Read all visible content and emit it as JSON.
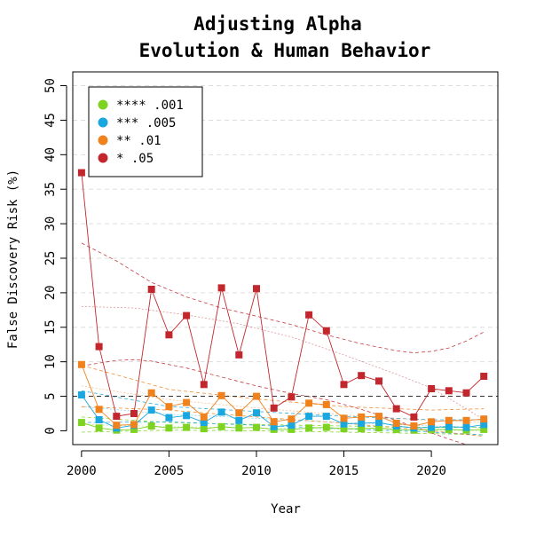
{
  "chart_data": {
    "type": "line",
    "title": "Adjusting Alpha",
    "subtitle": "Evolution & Human Behavior",
    "xlabel": "Year",
    "ylabel": "False Discovery Risk (%)",
    "xlim": [
      1999.5,
      2023.8
    ],
    "ylim": [
      -2,
      52
    ],
    "xticks": [
      2000,
      2005,
      2010,
      2015,
      2020
    ],
    "yticks": [
      0,
      5,
      10,
      15,
      20,
      25,
      30,
      35,
      40,
      45,
      50
    ],
    "reference_line": 5,
    "grid": "horizontal dashed",
    "legend_position": "top-left",
    "x": [
      2000,
      2001,
      2002,
      2003,
      2004,
      2005,
      2006,
      2007,
      2008,
      2009,
      2010,
      2011,
      2012,
      2013,
      2014,
      2015,
      2016,
      2017,
      2018,
      2019,
      2020,
      2021,
      2022,
      2023
    ],
    "series": [
      {
        "name": "**** .001",
        "color": "#7ed321",
        "values": [
          1.2,
          0.4,
          0.1,
          0.2,
          0.7,
          0.4,
          0.5,
          0.3,
          0.6,
          0.4,
          0.5,
          0.2,
          0.2,
          0.4,
          0.5,
          0.3,
          0.3,
          0.4,
          0.2,
          0.1,
          0.2,
          0.2,
          0.1,
          0.2
        ],
        "trend": [
          [
            2000,
            0.9
          ],
          [
            2005,
            0.6
          ],
          [
            2010,
            0.4
          ],
          [
            2015,
            0.25
          ],
          [
            2020,
            0.1
          ],
          [
            2023,
            0.0
          ]
        ],
        "band_upper": [
          [
            2000,
            2.0
          ],
          [
            2005,
            1.2
          ],
          [
            2010,
            0.9
          ],
          [
            2015,
            0.7
          ],
          [
            2020,
            0.5
          ],
          [
            2023,
            0.5
          ]
        ],
        "band_lower": [
          [
            2000,
            -0.2
          ],
          [
            2005,
            0.1
          ],
          [
            2010,
            0.0
          ],
          [
            2015,
            -0.2
          ],
          [
            2020,
            -0.4
          ],
          [
            2023,
            -0.6
          ]
        ]
      },
      {
        "name": "*** .005",
        "color": "#1aa7e0",
        "values": [
          5.2,
          1.6,
          0.4,
          0.8,
          3.0,
          1.9,
          2.2,
          1.2,
          2.7,
          1.5,
          2.6,
          0.6,
          0.8,
          2.1,
          2.1,
          1.0,
          1.1,
          1.2,
          0.7,
          0.4,
          0.5,
          0.6,
          0.5,
          0.9
        ],
        "trend": [
          [
            2000,
            3.5
          ],
          [
            2005,
            2.4
          ],
          [
            2010,
            1.8
          ],
          [
            2015,
            1.2
          ],
          [
            2020,
            0.7
          ],
          [
            2023,
            0.5
          ]
        ],
        "band_upper": [
          [
            2000,
            5.8
          ],
          [
            2005,
            3.5
          ],
          [
            2010,
            2.8
          ],
          [
            2015,
            2.1
          ],
          [
            2020,
            1.6
          ],
          [
            2023,
            1.6
          ]
        ],
        "band_lower": [
          [
            2000,
            1.2
          ],
          [
            2005,
            1.3
          ],
          [
            2010,
            0.8
          ],
          [
            2015,
            0.3
          ],
          [
            2020,
            -0.2
          ],
          [
            2023,
            -0.6
          ]
        ]
      },
      {
        "name": "** .01",
        "color": "#f0821e",
        "values": [
          9.6,
          3.1,
          0.8,
          0.9,
          5.5,
          3.5,
          4.1,
          2.0,
          5.1,
          2.6,
          5.0,
          1.3,
          1.7,
          4.0,
          3.8,
          1.8,
          2.0,
          2.1,
          1.1,
          0.7,
          1.3,
          1.5,
          1.5,
          1.7
        ],
        "trend": [
          [
            2000,
            6.5
          ],
          [
            2005,
            4.5
          ],
          [
            2010,
            3.3
          ],
          [
            2015,
            2.3
          ],
          [
            2020,
            1.5
          ],
          [
            2023,
            1.2
          ]
        ],
        "band_upper": [
          [
            2000,
            9.5
          ],
          [
            2005,
            6.0
          ],
          [
            2010,
            4.6
          ],
          [
            2015,
            3.5
          ],
          [
            2020,
            3.0
          ],
          [
            2023,
            3.2
          ]
        ],
        "band_lower": [
          [
            2000,
            3.5
          ],
          [
            2005,
            3.0
          ],
          [
            2010,
            2.0
          ],
          [
            2015,
            1.1
          ],
          [
            2020,
            0.0
          ],
          [
            2023,
            -0.8
          ]
        ]
      },
      {
        "name": "* .05",
        "color": "#c1272d",
        "values": [
          37.4,
          12.2,
          2.1,
          2.5,
          20.5,
          13.9,
          16.7,
          6.7,
          20.7,
          11.0,
          20.6,
          3.3,
          4.9,
          16.8,
          14.5,
          6.7,
          8.0,
          7.2,
          3.2,
          2.0,
          6.1,
          5.8,
          5.5,
          7.9
        ],
        "trend": [
          [
            2000,
            18.0
          ],
          [
            2003,
            17.8
          ],
          [
            2006,
            16.8
          ],
          [
            2009,
            15.5
          ],
          [
            2012,
            13.6
          ],
          [
            2015,
            11.0
          ],
          [
            2018,
            8.2
          ],
          [
            2020,
            6.2
          ],
          [
            2022,
            3.2
          ],
          [
            2023,
            1.6
          ]
        ],
        "band_upper": [
          [
            2000,
            27.2
          ],
          [
            2002,
            24.6
          ],
          [
            2004,
            21.5
          ],
          [
            2006,
            19.4
          ],
          [
            2008,
            17.8
          ],
          [
            2010,
            16.6
          ],
          [
            2012,
            15.4
          ],
          [
            2014,
            13.9
          ],
          [
            2016,
            12.6
          ],
          [
            2018,
            11.6
          ],
          [
            2019,
            11.3
          ],
          [
            2020,
            11.5
          ],
          [
            2021,
            12.0
          ],
          [
            2022,
            13.0
          ],
          [
            2023,
            14.3
          ]
        ],
        "band_lower": [
          [
            2000,
            9.4
          ],
          [
            2001,
            9.8
          ],
          [
            2002,
            10.2
          ],
          [
            2003,
            10.3
          ],
          [
            2004,
            10.1
          ],
          [
            2006,
            9.1
          ],
          [
            2008,
            7.8
          ],
          [
            2010,
            6.5
          ],
          [
            2012,
            5.4
          ],
          [
            2014,
            4.5
          ],
          [
            2016,
            3.1
          ],
          [
            2018,
            1.5
          ],
          [
            2020,
            -0.3
          ],
          [
            2021,
            -1.2
          ],
          [
            2022,
            -2.0
          ]
        ]
      }
    ]
  }
}
